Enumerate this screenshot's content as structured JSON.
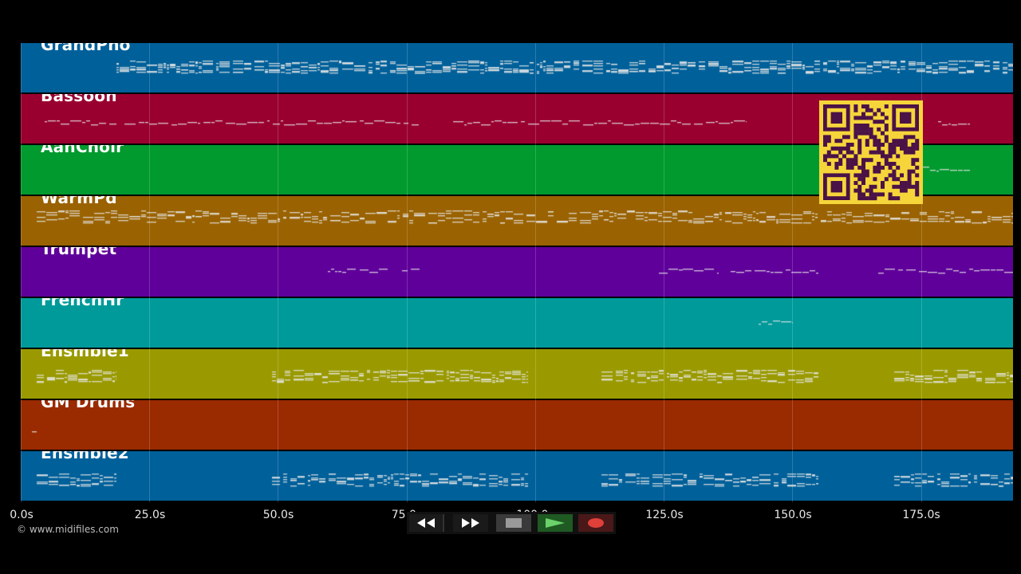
{
  "tracks": [
    {
      "name": "GrandPno",
      "color": "#00609a"
    },
    {
      "name": "Bassoon",
      "color": "#990030"
    },
    {
      "name": "AahChoir",
      "color": "#009a2e"
    },
    {
      "name": "WarmPd",
      "color": "#9a6200"
    },
    {
      "name": "Trumpet",
      "color": "#5f009a"
    },
    {
      "name": "FrenchHr",
      "color": "#009a9a"
    },
    {
      "name": "Ensmble1",
      "color": "#9a9a00"
    },
    {
      "name": "GM Drums",
      "color": "#9a2a00"
    },
    {
      "name": "Ensmble2",
      "color": "#00609a"
    }
  ],
  "timeline": {
    "ticks": [
      "0.0s",
      "25.0s",
      "50.0s",
      "75.0s",
      "100.0s",
      "125.0s",
      "150.0s",
      "175.0s"
    ]
  },
  "copyright": "© www.midifiles.com",
  "transport": {
    "buttons": [
      {
        "name": "rewind-button",
        "icon": "rewind-icon"
      },
      {
        "name": "fast-forward-button",
        "icon": "fast-forward-icon"
      },
      {
        "name": "stop-button",
        "icon": "stop-icon"
      },
      {
        "name": "play-button",
        "icon": "play-icon"
      },
      {
        "name": "record-button",
        "icon": "record-icon"
      }
    ]
  },
  "qr_code": {
    "icon": "qr-code-icon",
    "color": "#f5d53a",
    "module_color": "#4a1247"
  }
}
